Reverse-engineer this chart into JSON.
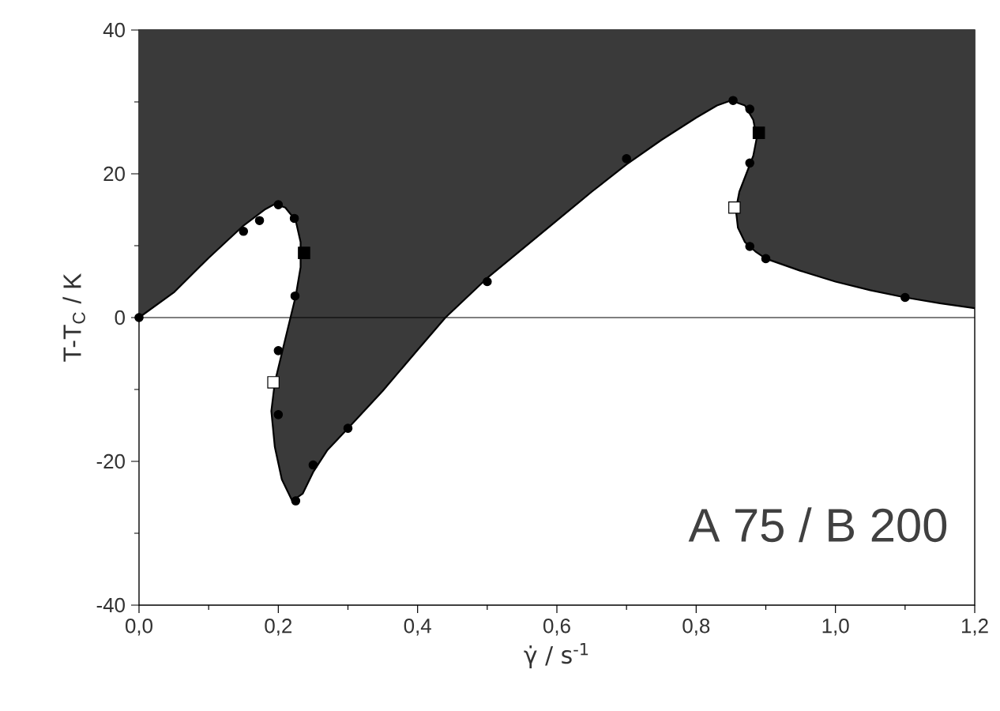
{
  "chart_data": {
    "type": "scatter",
    "xlabel": "γ̇ / s$^{-1}$",
    "ylabel": "T-T$_{C}$ / K",
    "xlim": [
      0,
      1.2
    ],
    "ylim": [
      -40,
      40
    ],
    "xticks": [
      {
        "value": 0,
        "label": "0,0"
      },
      {
        "value": 0.2,
        "label": "0,2"
      },
      {
        "value": 0.4,
        "label": "0,4"
      },
      {
        "value": 0.6,
        "label": "0,6"
      },
      {
        "value": 0.8,
        "label": "0,8"
      },
      {
        "value": 1.0,
        "label": "1,0"
      },
      {
        "value": 1.2,
        "label": "1,2"
      }
    ],
    "yticks": [
      -40,
      -20,
      0,
      20,
      40
    ],
    "ref_lines": [
      {
        "axis": "y",
        "value": 0,
        "color": "#000000"
      }
    ],
    "annotations": [
      "A 75 / B 200"
    ],
    "series": [
      {
        "type": "line",
        "color": "#000000",
        "x": [
          0,
          0.05,
          0.1,
          0.15,
          0.18,
          0.195,
          0.21,
          0.225,
          0.232,
          0.232,
          0.225,
          0.215,
          0.205,
          0.195,
          0.19,
          0.195,
          0.205,
          0.22,
          0.235,
          0.25,
          0.27,
          0.3,
          0.35,
          0.4,
          0.44,
          0.5,
          0.55,
          0.6,
          0.65,
          0.7,
          0.75,
          0.8,
          0.83,
          0.85,
          0.87,
          0.882,
          0.887,
          0.882,
          0.872,
          0.862,
          0.857,
          0.86,
          0.87,
          0.885,
          0.9,
          0.95,
          1.0,
          1.05,
          1.1,
          1.15,
          1.2
        ],
        "values": [
          0,
          3.5,
          8.3,
          12.8,
          15,
          15.8,
          15.3,
          13.5,
          10.5,
          7,
          3,
          -1,
          -5,
          -9,
          -13,
          -18,
          -22.5,
          -25.5,
          -24.5,
          -21.5,
          -18.5,
          -15.4,
          -10.2,
          -4.5,
          0,
          5.5,
          9.5,
          13.5,
          17.5,
          21.3,
          24.7,
          27.8,
          29.5,
          30.2,
          29.5,
          27.5,
          25,
          22.5,
          20,
          17.5,
          15,
          12.5,
          10.5,
          9.2,
          8.2,
          6.5,
          5.0,
          3.8,
          2.8,
          2.0,
          1.3
        ],
        "lower": [
          0,
          3.5,
          8.3,
          12.8,
          15,
          15.8,
          15.3,
          13.5,
          10.5,
          7,
          3,
          -1,
          -5,
          -9,
          -13,
          -18,
          -22.5,
          -25.5,
          -24.5,
          -21.5,
          -18.5,
          -15.4,
          -10.2,
          -4.5,
          0,
          5.5,
          9.5,
          13.5,
          17.5,
          21.3,
          24.7,
          27.8,
          29.5,
          30.2,
          29.5,
          27.5,
          25,
          22.5,
          20,
          17.5,
          15,
          12.5,
          10.5,
          9.2,
          8.2,
          6.5,
          5.0,
          3.8,
          2.8,
          2.0,
          1.3
        ],
        "upper": [
          40,
          40,
          40,
          40,
          40,
          40,
          40,
          40,
          40,
          40,
          40,
          40,
          40,
          40,
          40,
          40,
          40,
          40,
          40,
          40,
          40,
          40,
          40,
          40,
          40,
          40,
          40,
          40,
          40,
          40,
          40,
          40,
          40,
          40,
          40,
          40,
          40,
          40,
          40,
          40,
          40,
          40,
          40,
          40,
          40,
          40,
          40,
          40,
          40,
          40,
          40
        ]
      },
      {
        "marker": "circle",
        "color": "#000000",
        "x": [
          0,
          0.15,
          0.173,
          0.2,
          0.223,
          0.224,
          0.2,
          0.2,
          0.225,
          0.25,
          0.3,
          0.5,
          0.7,
          0.853,
          0.877,
          0.877,
          0.877,
          0.9,
          1.1
        ],
        "values": [
          0,
          12,
          13.5,
          15.7,
          13.8,
          3.0,
          -4.6,
          -13.5,
          -25.5,
          -20.5,
          -15.4,
          5.0,
          22.1,
          30.2,
          29.0,
          21.5,
          9.9,
          8.2,
          2.8
        ]
      },
      {
        "marker": "square",
        "color": "#ffffff",
        "x": [
          0.193,
          0.855
        ],
        "values": [
          -9.0,
          15.3
        ]
      },
      {
        "marker": "square",
        "color": "#000000",
        "x": [
          0.237,
          0.89
        ],
        "values": [
          9.0,
          25.7
        ]
      }
    ]
  }
}
